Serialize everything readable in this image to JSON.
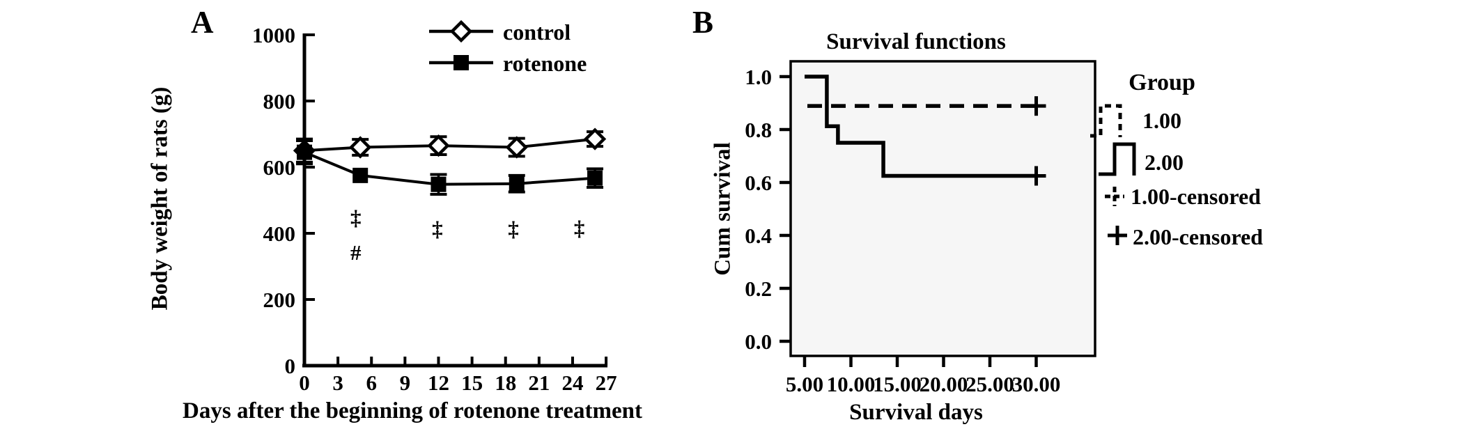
{
  "figure": {
    "background": "#ffffff",
    "ink_color": "#000000",
    "panel_b_plot_background": "#f6f6f6"
  },
  "chart_data": [
    {
      "type": "line",
      "panel_label": "A",
      "title": "",
      "xlabel": "Days after the beginning of rotenone treatment",
      "ylabel": "Body weight of rats (g)",
      "xlim": [
        0,
        27
      ],
      "ylim": [
        0,
        1000
      ],
      "xticks": [
        0,
        3,
        6,
        9,
        12,
        15,
        18,
        21,
        24,
        27
      ],
      "yticks": [
        0,
        200,
        400,
        600,
        800,
        1000
      ],
      "grid": false,
      "legend_position": "top-right",
      "x_days": [
        0,
        5,
        12,
        19,
        26
      ],
      "series": [
        {
          "name": "control",
          "marker": "open-diamond",
          "values": [
            650,
            660,
            665,
            660,
            685
          ],
          "errors": [
            35,
            24,
            27,
            27,
            22
          ]
        },
        {
          "name": "rotenone",
          "marker": "filled-square",
          "values": [
            645,
            575,
            548,
            550,
            567
          ],
          "errors": [
            35,
            0,
            30,
            25,
            28
          ]
        }
      ],
      "annotations": [
        {
          "symbol": "‡",
          "day": 4.6,
          "value": 448
        },
        {
          "symbol": "#",
          "day": 4.6,
          "value": 343
        },
        {
          "symbol": "‡",
          "day": 11.9,
          "value": 415
        },
        {
          "symbol": "‡",
          "day": 18.7,
          "value": 415
        },
        {
          "symbol": "‡",
          "day": 24.6,
          "value": 417
        }
      ]
    },
    {
      "type": "line",
      "panel_label": "B",
      "title": "Survival functions",
      "xlabel": "Survival days",
      "ylabel": "Cum survival",
      "xlim": [
        3.5,
        36
      ],
      "ylim": [
        0,
        1.05
      ],
      "xticks": [
        "5.00",
        "10.00",
        "15.00",
        "20.00",
        "25.00",
        "30.00"
      ],
      "xtick_values": [
        5,
        10,
        15,
        20,
        25,
        30
      ],
      "yticks": [
        "0.0",
        "0.2",
        "0.4",
        "0.6",
        "0.8",
        "1.0"
      ],
      "ytick_values": [
        0,
        0.2,
        0.4,
        0.6,
        0.8,
        1.0
      ],
      "grid": false,
      "legend_title": "Group",
      "series": [
        {
          "name": "1.00",
          "style": "dashed",
          "steps": [
            [
              5.3,
              0.889
            ],
            [
              30,
              0.889
            ]
          ],
          "censored": [
            [
              30,
              0.889
            ]
          ]
        },
        {
          "name": "2.00",
          "style": "solid",
          "steps": [
            [
              5.0,
              1.0
            ],
            [
              7.4,
              1.0
            ],
            [
              7.4,
              0.8125
            ],
            [
              8.6,
              0.8125
            ],
            [
              8.6,
              0.75
            ],
            [
              13.5,
              0.75
            ],
            [
              13.5,
              0.625
            ],
            [
              30,
              0.625
            ]
          ],
          "censored": [
            [
              30,
              0.625
            ]
          ]
        }
      ],
      "legend_entries": [
        {
          "label": "1.00",
          "style": "dashed-step"
        },
        {
          "label": "2.00",
          "style": "solid-step"
        },
        {
          "label": "1.00-censored",
          "style": "dashed-plus"
        },
        {
          "label": "2.00-censored",
          "style": "solid-plus"
        }
      ]
    }
  ]
}
